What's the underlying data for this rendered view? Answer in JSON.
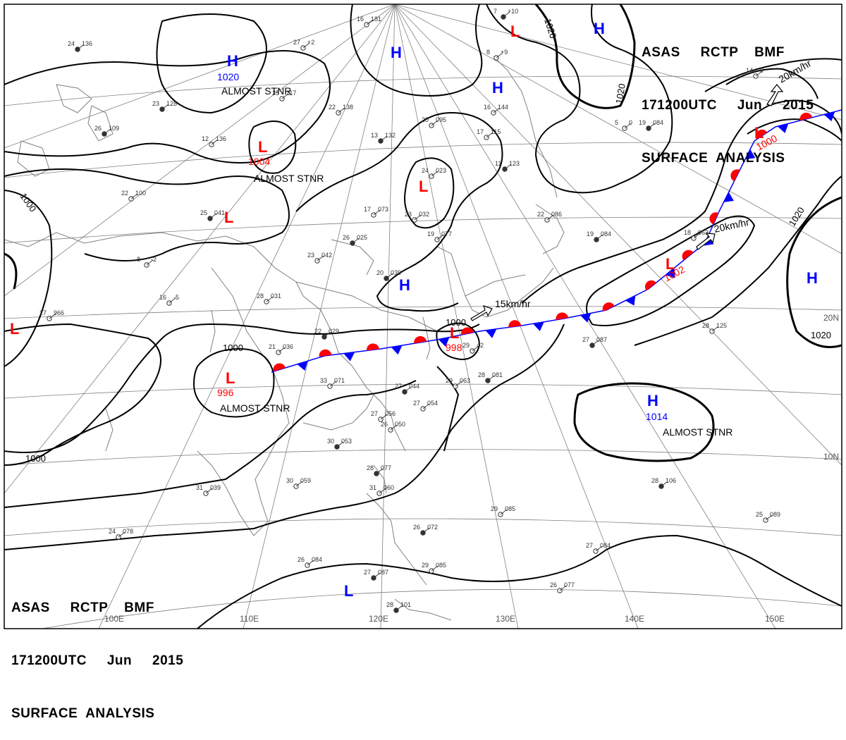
{
  "chart": {
    "title_lines": [
      "ASAS     RCTP    BMF",
      "171200UTC     Jun     2015",
      "SURFACE  ANALYSIS"
    ],
    "colors": {
      "isobar": "#000000",
      "graticule": "#808080",
      "coast": "#808080",
      "high": "#0000ff",
      "low": "#ff0000",
      "warm_front": "#ff0000",
      "cold_front": "#0000ff",
      "station": "#333333",
      "text": "#000000"
    }
  },
  "graticule": {
    "lon_labels": [
      "100E",
      "110E",
      "120E",
      "130E",
      "140E",
      "150E"
    ],
    "lat_labels": [
      "20N",
      "10N"
    ]
  },
  "isobar_labels": [
    "1000",
    "1000",
    "1000",
    "1000",
    "1020",
    "1020",
    "1020",
    "1020"
  ],
  "pressure_systems": [
    {
      "kind": "H",
      "value": "1020",
      "note": "ALMOST STNR"
    },
    {
      "kind": "L",
      "value": "1004",
      "note": "ALMOST STNR"
    },
    {
      "kind": "L",
      "value": "",
      "note": ""
    },
    {
      "kind": "H",
      "value": "",
      "note": ""
    },
    {
      "kind": "L",
      "value": "",
      "note": ""
    },
    {
      "kind": "H",
      "value": "",
      "note": ""
    },
    {
      "kind": "L",
      "value": "",
      "note": ""
    },
    {
      "kind": "H",
      "value": "",
      "note": ""
    },
    {
      "kind": "L",
      "value": "",
      "note": ""
    },
    {
      "kind": "L",
      "value": "996",
      "note": "ALMOST STNR"
    },
    {
      "kind": "L",
      "value": "998",
      "note": ""
    },
    {
      "kind": "L",
      "value": "1002",
      "note": ""
    },
    {
      "kind": "L",
      "value": "1000",
      "note": ""
    },
    {
      "kind": "H",
      "value": "",
      "note": ""
    },
    {
      "kind": "H",
      "value": "1014",
      "note": "ALMOST STNR"
    },
    {
      "kind": "H",
      "value": "",
      "note": ""
    },
    {
      "kind": "L",
      "value": "",
      "note": ""
    }
  ],
  "motions": [
    {
      "speed": "15km/hr"
    },
    {
      "speed": "20km/hr"
    },
    {
      "speed": "20km/hr"
    }
  ],
  "stations": [
    {
      "t": "24",
      "p": "136"
    },
    {
      "t": "27",
      "p": "+2"
    },
    {
      "t": "16",
      "p": "181"
    },
    {
      "t": "23",
      "p": "128"
    },
    {
      "t": "22",
      "p": "138"
    },
    {
      "t": "25",
      "p": "117"
    },
    {
      "t": "26",
      "p": "109"
    },
    {
      "t": "12",
      "p": "136"
    },
    {
      "t": "20",
      "p": "095"
    },
    {
      "t": "13",
      "p": "132"
    },
    {
      "t": "16",
      "p": "144"
    },
    {
      "t": "17",
      "p": "115"
    },
    {
      "t": "11",
      "p": "123"
    },
    {
      "t": "24",
      "p": "023"
    },
    {
      "t": "22",
      "p": "100"
    },
    {
      "t": "25",
      "p": "041"
    },
    {
      "t": "17",
      "p": "073"
    },
    {
      "t": "23",
      "p": "032"
    },
    {
      "t": "26",
      "p": "025"
    },
    {
      "t": "19",
      "p": "077"
    },
    {
      "t": "22",
      "p": "086"
    },
    {
      "t": "19",
      "p": "084"
    },
    {
      "t": "18",
      "p": "063"
    },
    {
      "t": "23",
      "p": "042"
    },
    {
      "t": "20",
      "p": "039"
    },
    {
      "t": "28",
      "p": "031"
    },
    {
      "t": "16",
      "p": "-5"
    },
    {
      "t": "22",
      "p": "029"
    },
    {
      "t": "21",
      "p": "036"
    },
    {
      "t": "29",
      "p": "42"
    },
    {
      "t": "27",
      "p": "087"
    },
    {
      "t": "28",
      "p": "125"
    },
    {
      "t": "33",
      "p": "071"
    },
    {
      "t": "27",
      "p": "044"
    },
    {
      "t": "29",
      "p": "063"
    },
    {
      "t": "27",
      "p": "054"
    },
    {
      "t": "28",
      "p": "081"
    },
    {
      "t": "27",
      "p": "056"
    },
    {
      "t": "26",
      "p": "050"
    },
    {
      "t": "30",
      "p": "053"
    },
    {
      "t": "30",
      "p": "059"
    },
    {
      "t": "31",
      "p": "039"
    },
    {
      "t": "28",
      "p": "077"
    },
    {
      "t": "31",
      "p": "060"
    },
    {
      "t": "29",
      "p": "085"
    },
    {
      "t": "28",
      "p": "106"
    },
    {
      "t": "25",
      "p": "089"
    },
    {
      "t": "24",
      "p": "078"
    },
    {
      "t": "26",
      "p": "072"
    },
    {
      "t": "27",
      "p": "084"
    },
    {
      "t": "26",
      "p": "084"
    },
    {
      "t": "27",
      "p": "087"
    },
    {
      "t": "29",
      "p": "085"
    },
    {
      "t": "26",
      "p": "077"
    },
    {
      "t": "28",
      "p": "101"
    },
    {
      "t": "5",
      "p": "0"
    },
    {
      "t": "14",
      "p": "0"
    },
    {
      "t": "19",
      "p": "084"
    },
    {
      "t": "8",
      "p": "-2"
    },
    {
      "t": "27",
      "p": "966"
    },
    {
      "t": "7",
      "p": "+10"
    },
    {
      "t": "8",
      "p": "+9"
    }
  ]
}
